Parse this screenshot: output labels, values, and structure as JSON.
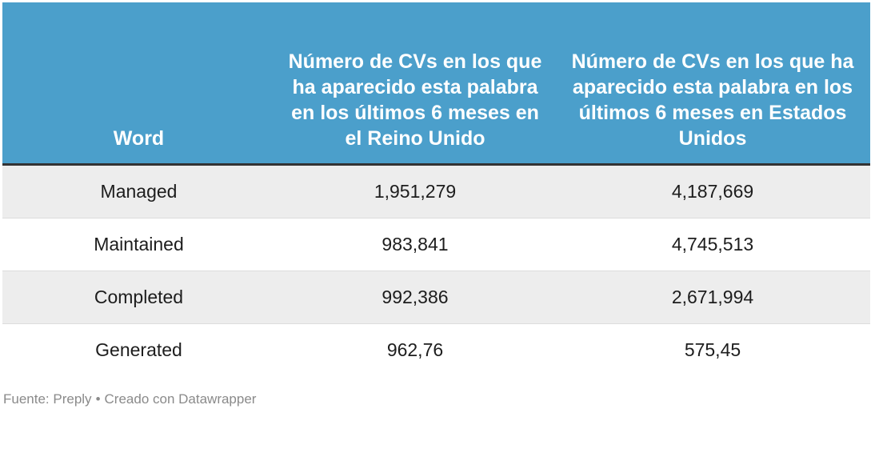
{
  "chart_data": {
    "type": "table",
    "columns": [
      "Word",
      "Número de CVs en los que ha aparecido esta palabra en los últimos 6 meses en el Reino Unido",
      "Número de CVs en los que ha aparecido esta palabra en los últimos 6 meses en Estados Unidos"
    ],
    "rows": [
      [
        "Managed",
        "1,951,279",
        "4,187,669"
      ],
      [
        "Maintained",
        "983,841",
        "4,745,513"
      ],
      [
        "Completed",
        "992,386",
        "2,671,994"
      ],
      [
        "Generated",
        "962,76",
        "575,45"
      ]
    ]
  },
  "footer": {
    "source": "Fuente: Preply",
    "separator": "•",
    "credit": "Creado con Datawrapper"
  },
  "colors": {
    "header_bg": "#4b9fcb",
    "header_text": "#ffffff",
    "stripe": "#ededed"
  }
}
